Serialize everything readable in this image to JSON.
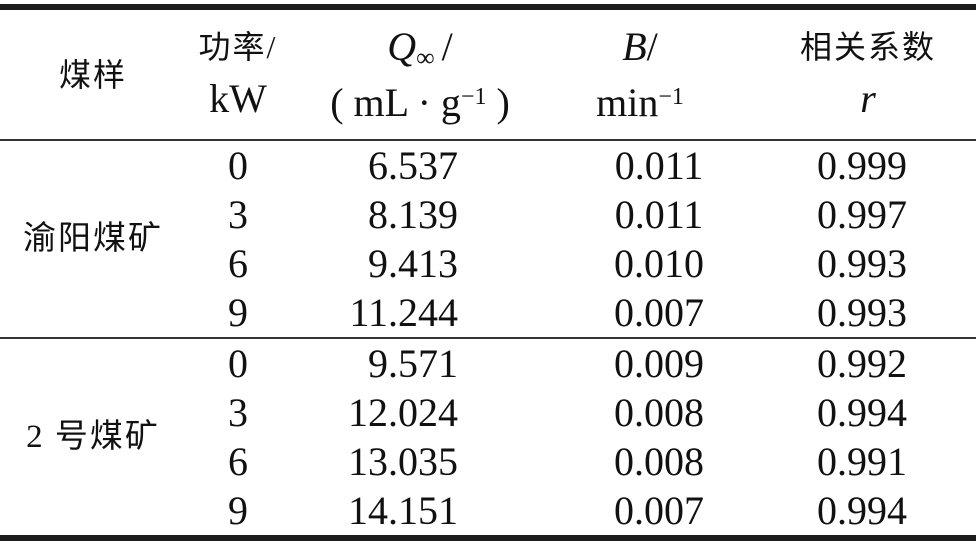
{
  "colors": {
    "background": "#ffffff",
    "text": "#111111",
    "thick_rule": "#1c1c1c",
    "thin_rule": "#333333"
  },
  "header": {
    "sample": {
      "title": "煤样"
    },
    "power": {
      "line1": "功率/",
      "line2": "kW"
    },
    "q": {
      "symbol": "Q",
      "sub": "∞",
      "slash": "/",
      "unit_open": "( mL · g",
      "unit_sup": "−1",
      "unit_close": " )"
    },
    "b": {
      "symbol": "B",
      "slash": "/",
      "unit_base": "min",
      "unit_sup": "−1"
    },
    "r": {
      "line1": "相关系数",
      "line2": "r"
    }
  },
  "groups": [
    {
      "name": "渝阳煤矿",
      "rows": [
        {
          "power": "0",
          "q": "6.537",
          "b": "0.011",
          "r": "0.999"
        },
        {
          "power": "3",
          "q": "8.139",
          "b": "0.011",
          "r": "0.997"
        },
        {
          "power": "6",
          "q": "9.413",
          "b": "0.010",
          "r": "0.993"
        },
        {
          "power": "9",
          "q": "11.244",
          "b": "0.007",
          "r": "0.993"
        }
      ]
    },
    {
      "name": "2 号煤矿",
      "rows": [
        {
          "power": "0",
          "q": "9.571",
          "b": "0.009",
          "r": "0.992"
        },
        {
          "power": "3",
          "q": "12.024",
          "b": "0.008",
          "r": "0.994"
        },
        {
          "power": "6",
          "q": "13.035",
          "b": "0.008",
          "r": "0.991"
        },
        {
          "power": "9",
          "q": "14.151",
          "b": "0.007",
          "r": "0.994"
        }
      ]
    }
  ],
  "chart_data": {
    "type": "table",
    "columns": [
      "煤样",
      "功率/kW",
      "Q∞/(mL·g−1)",
      "B/min−1",
      "相关系数 r"
    ],
    "rows": [
      [
        "渝阳煤矿",
        0,
        6.537,
        0.011,
        0.999
      ],
      [
        "渝阳煤矿",
        3,
        8.139,
        0.011,
        0.997
      ],
      [
        "渝阳煤矿",
        6,
        9.413,
        0.01,
        0.993
      ],
      [
        "渝阳煤矿",
        9,
        11.244,
        0.007,
        0.993
      ],
      [
        "2 号煤矿",
        0,
        9.571,
        0.009,
        0.992
      ],
      [
        "2 号煤矿",
        3,
        12.024,
        0.008,
        0.994
      ],
      [
        "2 号煤矿",
        6,
        13.035,
        0.008,
        0.991
      ],
      [
        "2 号煤矿",
        9,
        14.151,
        0.007,
        0.994
      ]
    ]
  }
}
